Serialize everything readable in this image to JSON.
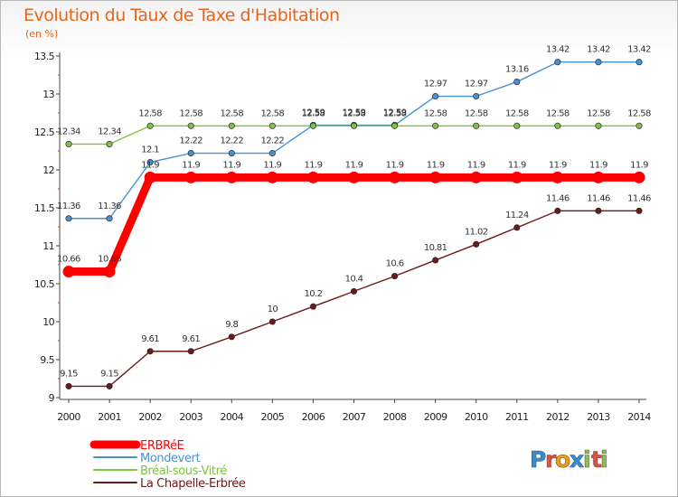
{
  "title": "Evolution du Taux de Taxe d'Habitation",
  "unit": "(en %)",
  "brand": {
    "letters": [
      "P",
      "r",
      "o",
      "x",
      "i",
      "t",
      "i"
    ],
    "colors": [
      "#2f8fd6",
      "#e74c3c",
      "#f39c12",
      "#2f8fd6",
      "#8bc34a",
      "#e74c3c",
      "#8bc34a"
    ]
  },
  "chart_data": {
    "type": "line",
    "x": [
      "2000",
      "2001",
      "2002",
      "2003",
      "2004",
      "2005",
      "2006",
      "2007",
      "2008",
      "2009",
      "2010",
      "2011",
      "2012",
      "2013",
      "2014"
    ],
    "ylim": [
      9,
      13.5
    ],
    "yticks": [
      "9",
      "9.5",
      "10",
      "10.5",
      "11",
      "11.5",
      "12",
      "12.5",
      "13",
      "13.5"
    ],
    "grid": false,
    "legend": "bottom",
    "series": [
      {
        "name": "ERBRéE",
        "color": "#ff0000",
        "values": [
          10.66,
          10.66,
          11.9,
          11.9,
          11.9,
          11.9,
          11.9,
          11.9,
          11.9,
          11.9,
          11.9,
          11.9,
          11.9,
          11.9,
          11.9
        ],
        "labels": [
          "10.66",
          "10.66",
          "11.9",
          "11.9",
          "11.9",
          "11.9",
          "11.9",
          "11.9",
          "11.9",
          "11.9",
          "11.9",
          "11.9",
          "11.9",
          "11.9",
          "11.9"
        ]
      },
      {
        "name": "Mondevert",
        "color": "#4a90cf",
        "values": [
          11.36,
          11.36,
          12.1,
          12.22,
          12.22,
          12.22,
          12.59,
          12.59,
          12.59,
          12.97,
          12.97,
          13.16,
          13.42,
          13.42,
          13.42
        ],
        "labels": [
          "11.36",
          "11.36",
          "12.1",
          "12.22",
          "12.22",
          "12.22",
          "12.59",
          "12.59",
          "12.59",
          "12.97",
          "12.97",
          "13.16",
          "13.42",
          "13.42",
          "13.42"
        ]
      },
      {
        "name": "Bréal-sous-Vitré",
        "color": "#7dc242",
        "values": [
          12.34,
          12.34,
          12.58,
          12.58,
          12.58,
          12.58,
          12.58,
          12.58,
          12.58,
          12.58,
          12.58,
          12.58,
          12.58,
          12.58,
          12.58
        ],
        "labels": [
          "12.34",
          "12.34",
          "12.58",
          "12.58",
          "12.58",
          "12.58",
          "12.58",
          "12.58",
          "12.58",
          "12.58",
          "12.58",
          "12.58",
          "12.58",
          "12.58",
          "12.58"
        ]
      },
      {
        "name": "La Chapelle-Erbrée",
        "color": "#6b1a1a",
        "values": [
          9.15,
          9.15,
          9.61,
          9.61,
          9.8,
          10,
          10.2,
          10.4,
          10.6,
          10.81,
          11.02,
          11.24,
          11.46,
          11.46,
          11.46
        ],
        "labels": [
          "9.15",
          "9.15",
          "9.61",
          "9.61",
          "9.8",
          "10",
          "10.2",
          "10.4",
          "10.6",
          "10.81",
          "11.02",
          "11.24",
          "11.46",
          "11.46",
          "11.46"
        ]
      }
    ]
  }
}
